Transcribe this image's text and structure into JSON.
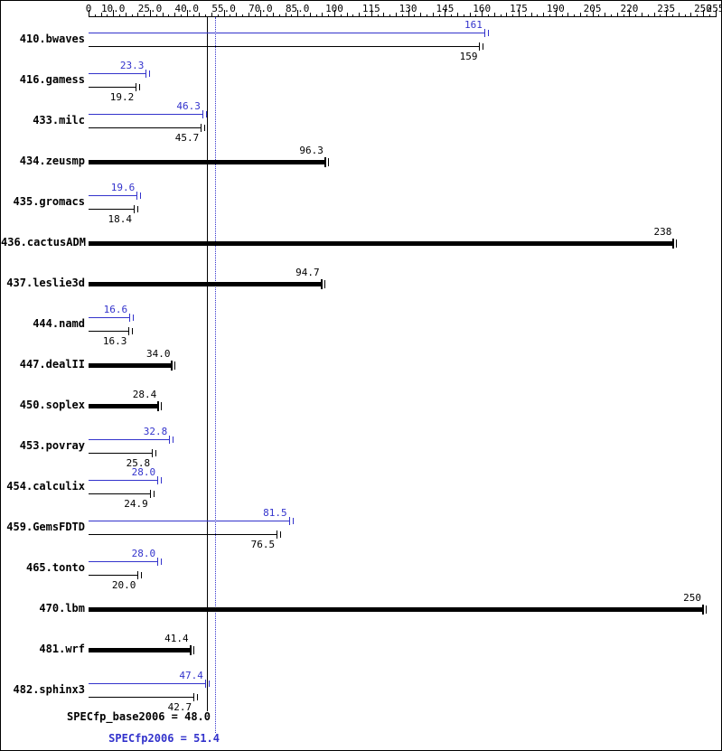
{
  "colors": {
    "peak": "#3333cc",
    "base": "#000000",
    "background": "#ffffff"
  },
  "chart_data": {
    "type": "bar",
    "orientation": "horizontal",
    "axis": {
      "min": 0,
      "max": 255,
      "minor_tick_step": 2.5,
      "ticks": [
        {
          "value": 0,
          "label": "0"
        },
        {
          "value": 10,
          "label": "10.0"
        },
        {
          "value": 25,
          "label": "25.0"
        },
        {
          "value": 40,
          "label": "40.0"
        },
        {
          "value": 55,
          "label": "55.0"
        },
        {
          "value": 70,
          "label": "70.0"
        },
        {
          "value": 85,
          "label": "85.0"
        },
        {
          "value": 100,
          "label": "100"
        },
        {
          "value": 115,
          "label": "115"
        },
        {
          "value": 130,
          "label": "130"
        },
        {
          "value": 145,
          "label": "145"
        },
        {
          "value": 160,
          "label": "160"
        },
        {
          "value": 175,
          "label": "175"
        },
        {
          "value": 190,
          "label": "190"
        },
        {
          "value": 205,
          "label": "205"
        },
        {
          "value": 220,
          "label": "220"
        },
        {
          "value": 235,
          "label": "235"
        },
        {
          "value": 250,
          "label": "250"
        },
        {
          "value": 255,
          "label": "255"
        }
      ]
    },
    "series": [
      {
        "name": "peak",
        "color": "#3333cc",
        "bar_style": "thin"
      },
      {
        "name": "base",
        "color": "#000000",
        "bar_style": "thin"
      }
    ],
    "benchmarks": [
      {
        "name": "410.bwaves",
        "peak": {
          "value": 161,
          "label": "161"
        },
        "base": {
          "value": 159,
          "label": "159"
        }
      },
      {
        "name": "416.gamess",
        "peak": {
          "value": 23.3,
          "label": "23.3"
        },
        "base": {
          "value": 19.2,
          "label": "19.2"
        }
      },
      {
        "name": "433.milc",
        "peak": {
          "value": 46.3,
          "label": "46.3"
        },
        "base": {
          "value": 45.7,
          "label": "45.7"
        }
      },
      {
        "name": "434.zeusmp",
        "single": {
          "value": 96.3,
          "label": "96.3"
        }
      },
      {
        "name": "435.gromacs",
        "peak": {
          "value": 19.6,
          "label": "19.6"
        },
        "base": {
          "value": 18.4,
          "label": "18.4"
        }
      },
      {
        "name": "436.cactusADM",
        "single": {
          "value": 238,
          "label": "238"
        }
      },
      {
        "name": "437.leslie3d",
        "single": {
          "value": 94.7,
          "label": "94.7"
        }
      },
      {
        "name": "444.namd",
        "peak": {
          "value": 16.6,
          "label": "16.6"
        },
        "base": {
          "value": 16.3,
          "label": "16.3"
        }
      },
      {
        "name": "447.dealII",
        "single": {
          "value": 34.0,
          "label": "34.0"
        }
      },
      {
        "name": "450.soplex",
        "single": {
          "value": 28.4,
          "label": "28.4"
        }
      },
      {
        "name": "453.povray",
        "peak": {
          "value": 32.8,
          "label": "32.8"
        },
        "base": {
          "value": 25.8,
          "label": "25.8"
        }
      },
      {
        "name": "454.calculix",
        "peak": {
          "value": 28.0,
          "label": "28.0"
        },
        "base": {
          "value": 24.9,
          "label": "24.9"
        }
      },
      {
        "name": "459.GemsFDTD",
        "peak": {
          "value": 81.5,
          "label": "81.5"
        },
        "base": {
          "value": 76.5,
          "label": "76.5"
        }
      },
      {
        "name": "465.tonto",
        "peak": {
          "value": 28.0,
          "label": "28.0"
        },
        "base": {
          "value": 20.0,
          "label": "20.0"
        }
      },
      {
        "name": "470.lbm",
        "single": {
          "value": 250,
          "label": "250"
        }
      },
      {
        "name": "481.wrf",
        "single": {
          "value": 41.4,
          "label": "41.4"
        }
      },
      {
        "name": "482.sphinx3",
        "peak": {
          "value": 47.4,
          "label": "47.4"
        },
        "base": {
          "value": 42.7,
          "label": "42.7"
        }
      }
    ],
    "means": {
      "base": {
        "label": "SPECfp_base2006 = 48.0",
        "value": 48.0,
        "color": "#000000",
        "line_style": "solid"
      },
      "peak": {
        "label": "SPECfp2006 = 51.4",
        "value": 51.4,
        "color": "#3333cc",
        "line_style": "dotted"
      }
    }
  }
}
